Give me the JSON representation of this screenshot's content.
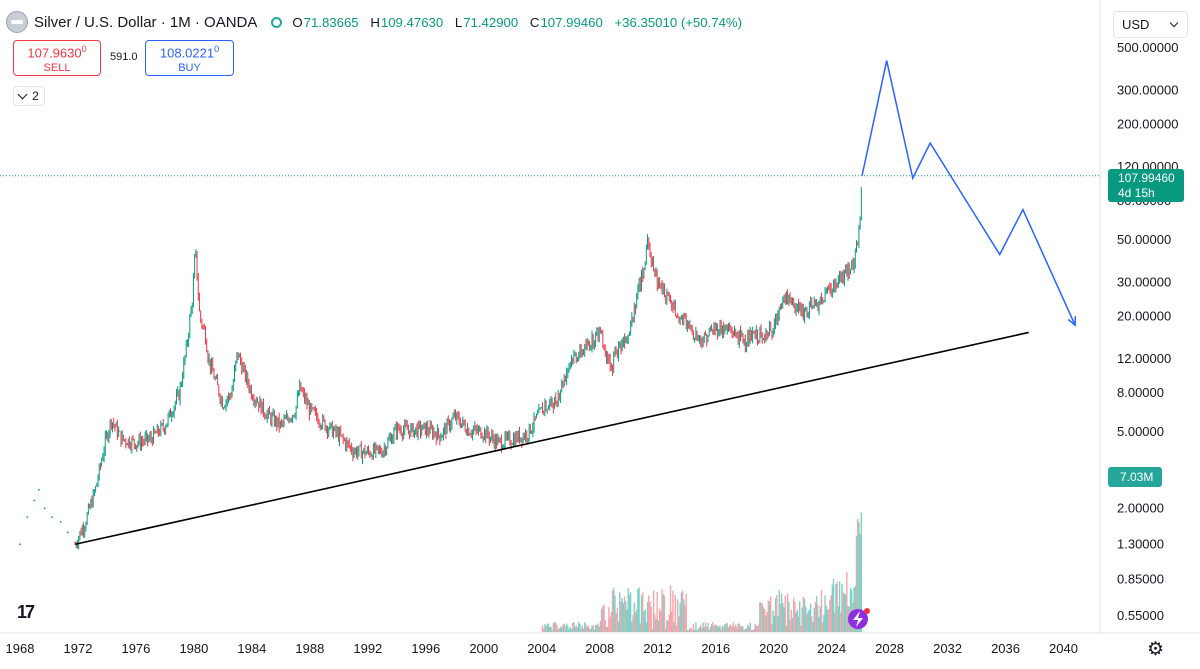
{
  "header": {
    "title": "Silver / U.S. Dollar · 1M · OANDA",
    "o_label": "O",
    "o": "71.83665",
    "h_label": "H",
    "h": "109.47630",
    "l_label": "L",
    "l": "71.42900",
    "c_label": "C",
    "c": "107.99460",
    "change": "+36.35010 (+50.74%)",
    "up_color": "#089981"
  },
  "trade": {
    "sell_price": "107.9630",
    "sell_price_sup": "0",
    "sell_label": "SELL",
    "spread": "591.0",
    "buy_price": "108.0221",
    "buy_price_sup": "0",
    "buy_label": "BUY"
  },
  "indicators_count": "2",
  "currency": "USD",
  "last_price": {
    "value": "107.99460",
    "countdown": "4d 15h"
  },
  "volume_badge": "7.03M",
  "logo_text": "17",
  "icons": [
    "settings-icon",
    "chevron-down-icon",
    "lightning-icon",
    "tradingview-logo"
  ],
  "chart_data": {
    "type": "line",
    "y_scale": "log",
    "ylim": [
      0.45,
      600
    ],
    "y_ticks": [
      "500.00000",
      "300.00000",
      "200.00000",
      "120.00000",
      "80.00000",
      "50.00000",
      "30.00000",
      "20.00000",
      "12.00000",
      "8.00000",
      "5.00000",
      "2.00000",
      "1.30000",
      "0.85000",
      "0.55000"
    ],
    "x_ticks": [
      "1968",
      "1972",
      "1976",
      "1980",
      "1984",
      "1988",
      "1992",
      "1996",
      "2000",
      "2004",
      "2008",
      "2012",
      "2016",
      "2020",
      "2024",
      "2028",
      "2032",
      "2036",
      "2040"
    ],
    "xlim": [
      1967.8,
      2043.0
    ],
    "price_series": [
      [
        1971.8,
        1.3
      ],
      [
        1972.5,
        1.7
      ],
      [
        1973.2,
        2.5
      ],
      [
        1973.9,
        4.5
      ],
      [
        1974.3,
        5.8
      ],
      [
        1975,
        4.6
      ],
      [
        1976,
        4.4
      ],
      [
        1977,
        4.6
      ],
      [
        1978,
        5.4
      ],
      [
        1979,
        8
      ],
      [
        1979.5,
        14
      ],
      [
        1979.9,
        25
      ],
      [
        1980.1,
        45
      ],
      [
        1980.4,
        20
      ],
      [
        1980.8,
        16
      ],
      [
        1981,
        12
      ],
      [
        1982,
        7
      ],
      [
        1982.6,
        8
      ],
      [
        1983,
        13
      ],
      [
        1983.5,
        10
      ],
      [
        1984,
        8
      ],
      [
        1985,
        6.2
      ],
      [
        1986,
        5.4
      ],
      [
        1987,
        6.5
      ],
      [
        1987.3,
        8.5
      ],
      [
        1988,
        6.5
      ],
      [
        1989,
        5.5
      ],
      [
        1990,
        4.8
      ],
      [
        1991,
        4
      ],
      [
        1992,
        3.9
      ],
      [
        1993,
        4
      ],
      [
        1994,
        5.2
      ],
      [
        1995,
        5.1
      ],
      [
        1996,
        5.2
      ],
      [
        1997,
        4.8
      ],
      [
        1998,
        6
      ],
      [
        1999,
        5.1
      ],
      [
        2000,
        5
      ],
      [
        2001,
        4.4
      ],
      [
        2002,
        4.6
      ],
      [
        2003,
        4.9
      ],
      [
        2004,
        6.5
      ],
      [
        2005,
        7.3
      ],
      [
        2006,
        12
      ],
      [
        2007,
        13.5
      ],
      [
        2008,
        17
      ],
      [
        2008.8,
        10
      ],
      [
        2009,
        12.5
      ],
      [
        2010,
        17
      ],
      [
        2011,
        35
      ],
      [
        2011.3,
        48
      ],
      [
        2012,
        30
      ],
      [
        2013,
        23
      ],
      [
        2014,
        18
      ],
      [
        2015,
        15
      ],
      [
        2016,
        17.5
      ],
      [
        2017,
        17
      ],
      [
        2018,
        15
      ],
      [
        2019,
        16
      ],
      [
        2020,
        17
      ],
      [
        2020.6,
        26
      ],
      [
        2021,
        25
      ],
      [
        2022,
        21
      ],
      [
        2023,
        23
      ],
      [
        2024,
        28
      ],
      [
        2025,
        34
      ],
      [
        2025.5,
        38
      ],
      [
        2025.8,
        48
      ],
      [
        2026,
        72
      ],
      [
        2026.1,
        108
      ]
    ],
    "projection": [
      [
        2026.1,
        108
      ],
      [
        2027.8,
        430
      ],
      [
        2029.6,
        105
      ],
      [
        2030.8,
        160
      ],
      [
        2035.6,
        42
      ],
      [
        2037.2,
        72
      ],
      [
        2040.8,
        18
      ]
    ],
    "trendline": [
      [
        1971.8,
        1.3
      ],
      [
        2037.6,
        16.5
      ]
    ],
    "last_price": 107.9946,
    "volume": {
      "last_bar": "7.03M"
    },
    "grid": false
  }
}
